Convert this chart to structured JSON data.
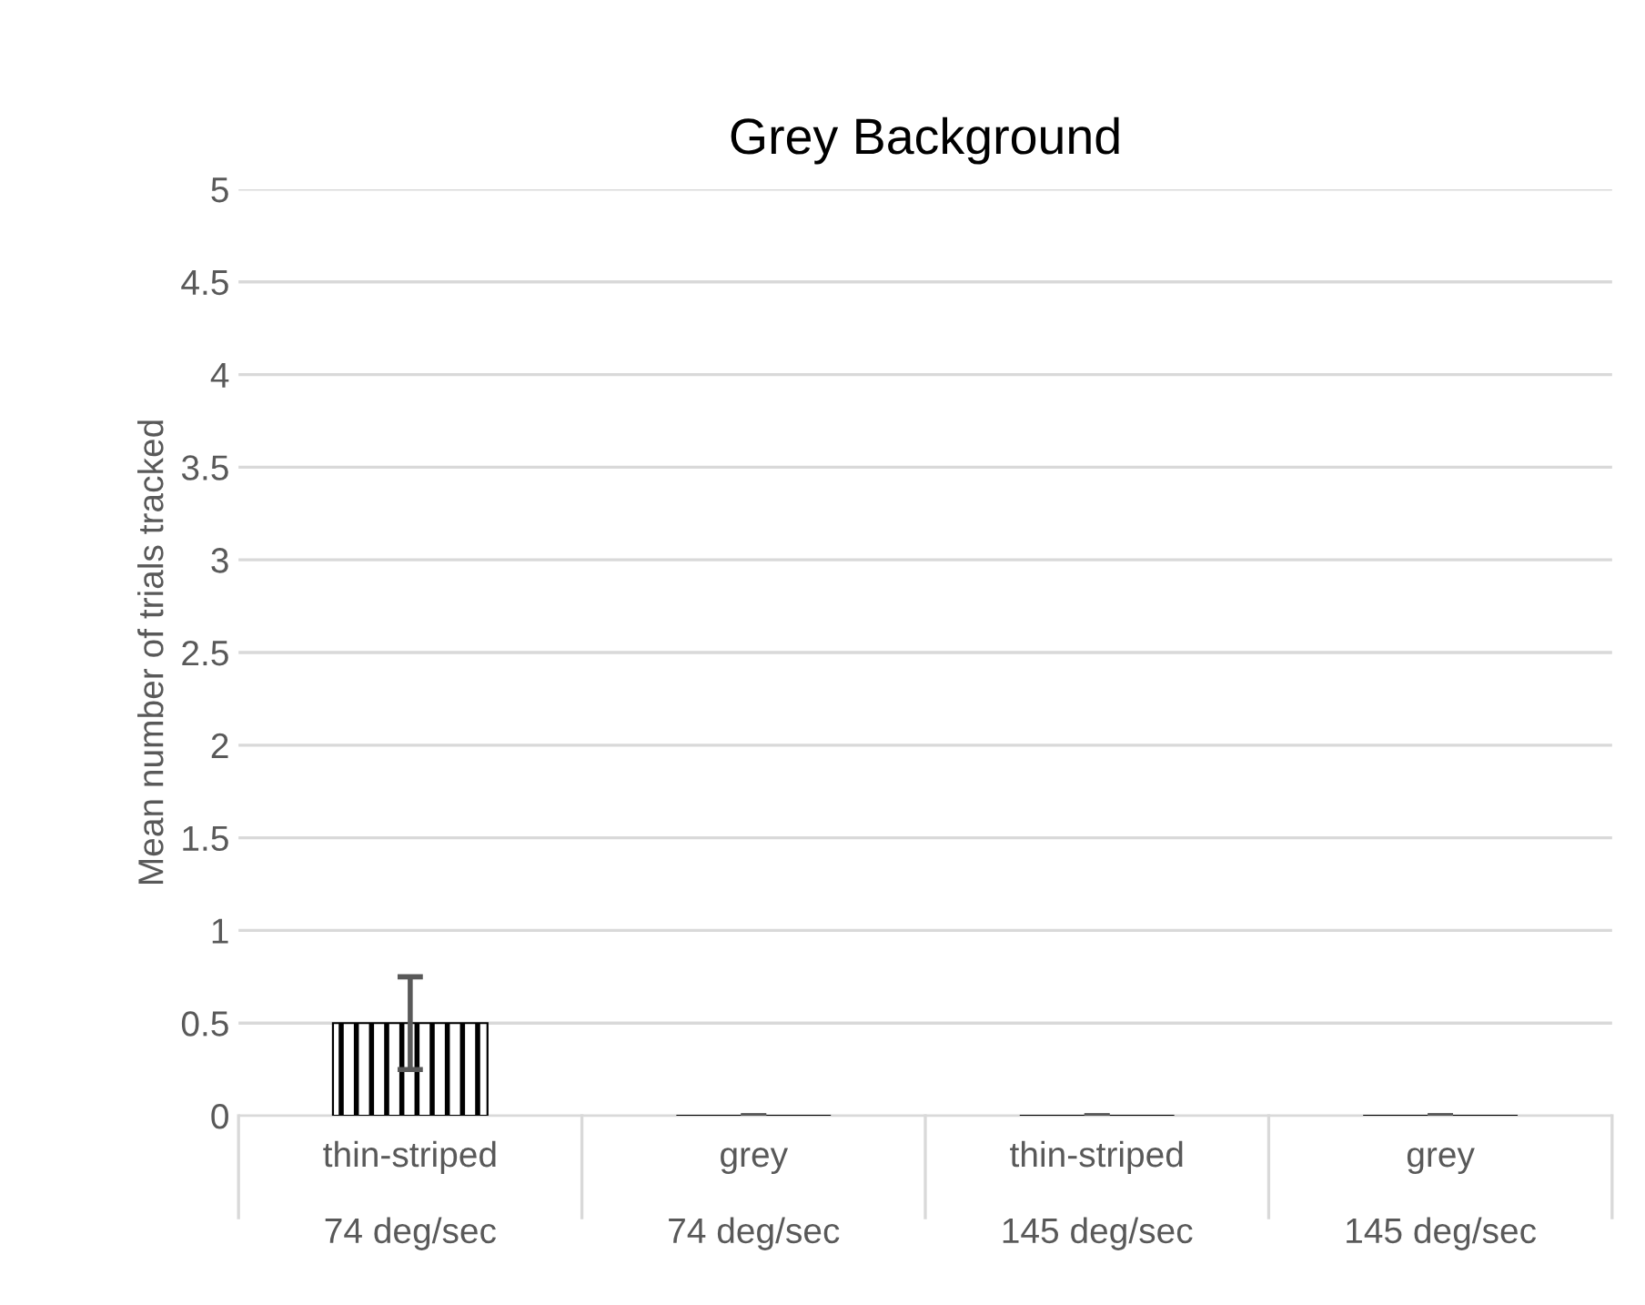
{
  "chart_data": {
    "type": "bar",
    "title": "Grey Background",
    "ylabel": "Mean number of trials tracked",
    "categories": [
      "thin-striped\n\n74 deg/sec",
      "grey\n\n74 deg/sec",
      "thin-striped\n\n145 deg/sec",
      "grey\n\n145 deg/sec"
    ],
    "values": [
      0.5,
      0,
      0,
      0
    ],
    "errors": [
      0.25,
      0,
      0,
      0
    ],
    "color": "#000000",
    "ylim": [
      0,
      5
    ],
    "yticks": [
      0,
      0.5,
      1,
      1.5,
      2,
      2.5,
      3,
      3.5,
      4,
      4.5,
      5
    ],
    "grid": "y"
  }
}
